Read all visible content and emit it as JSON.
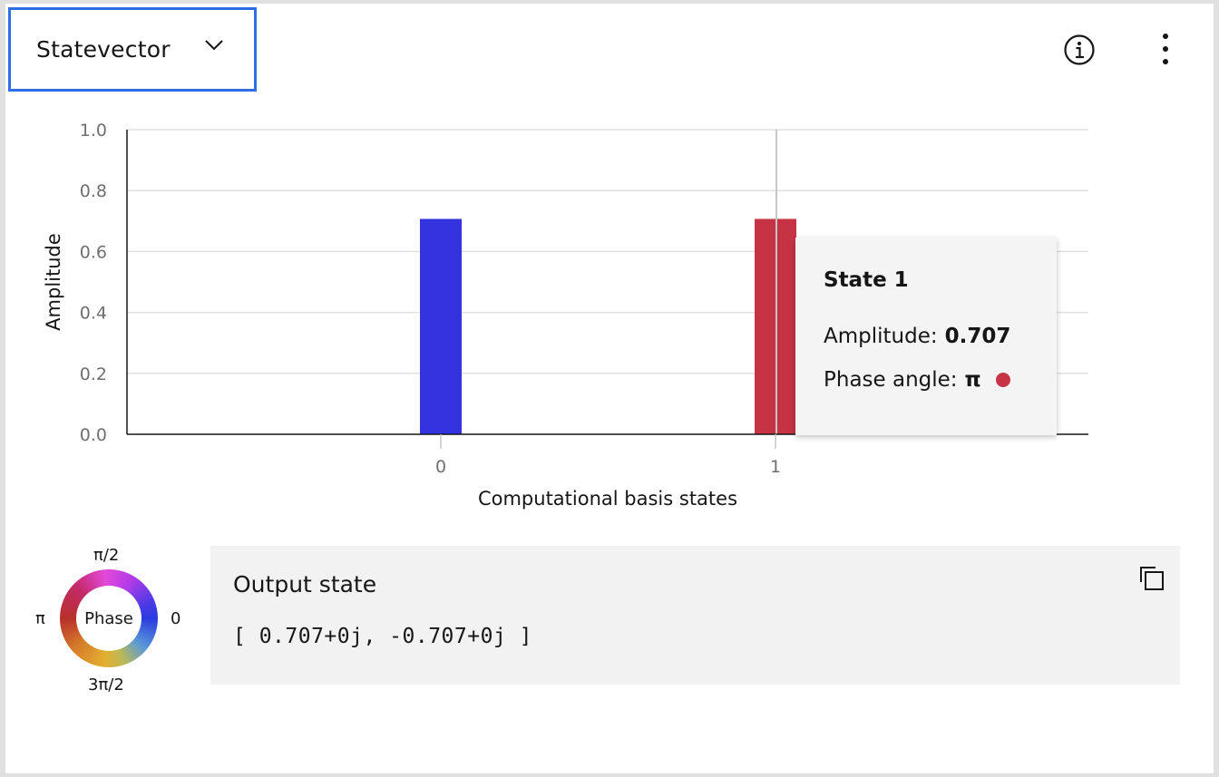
{
  "header": {
    "dropdown_value": "Statevector",
    "icons": {
      "dropdown": "chevron-down-icon",
      "info": "info-icon",
      "menu": "overflow-menu-vertical-icon"
    },
    "accent_color": "#2f6ee8"
  },
  "chart_data": {
    "type": "bar",
    "categories": [
      "0",
      "1"
    ],
    "values": [
      0.707,
      0.707
    ],
    "bar_colors": [
      "#3333e0",
      "#c63345"
    ],
    "ylabel": "Amplitude",
    "xlabel": "Computational basis states",
    "ylim": [
      0,
      1.0
    ],
    "yticks": [
      "0.0",
      "0.2",
      "0.4",
      "0.6",
      "0.8",
      "1.0"
    ],
    "ytick_values": [
      0,
      0.2,
      0.4,
      0.6,
      0.8,
      1.0
    ],
    "grid": true,
    "hover_index": 1
  },
  "tooltip": {
    "title": "State 1",
    "amplitude_label": "Amplitude:",
    "amplitude_value": "0.707",
    "phase_label": "Phase angle:",
    "phase_value": "π",
    "phase_color": "#c63345"
  },
  "phase_wheel": {
    "center_label": "Phase",
    "top": "π/2",
    "left": "π",
    "right": "0",
    "bottom": "3π/2"
  },
  "output": {
    "title": "Output state",
    "value": "[ 0.707+0j, -0.707+0j ]",
    "copy_icon": "copy-icon"
  }
}
